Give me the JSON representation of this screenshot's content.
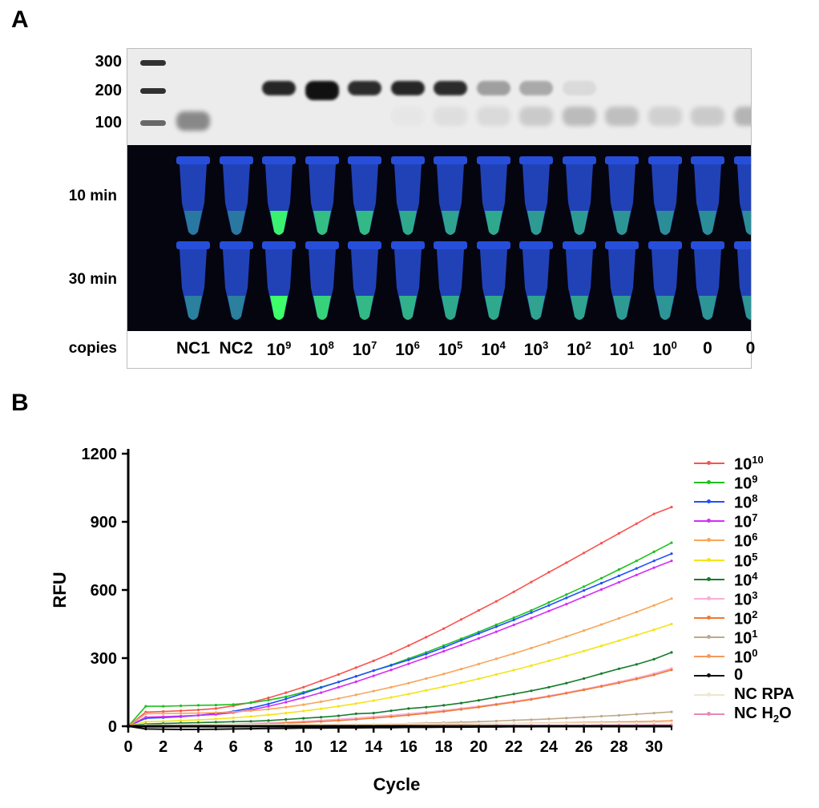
{
  "panels": {
    "a_label": "A",
    "b_label": "B"
  },
  "gel": {
    "ladder_labels": [
      "300",
      "200",
      "100"
    ],
    "row_labels": [
      "10 min",
      "30 min",
      "copies"
    ],
    "lanes": [
      {
        "base": "NC1",
        "exp": ""
      },
      {
        "base": "NC2",
        "exp": ""
      },
      {
        "base": "10",
        "exp": "9"
      },
      {
        "base": "10",
        "exp": "8"
      },
      {
        "base": "10",
        "exp": "7"
      },
      {
        "base": "10",
        "exp": "6"
      },
      {
        "base": "10",
        "exp": "5"
      },
      {
        "base": "10",
        "exp": "4"
      },
      {
        "base": "10",
        "exp": "3"
      },
      {
        "base": "10",
        "exp": "2"
      },
      {
        "base": "10",
        "exp": "1"
      },
      {
        "base": "10",
        "exp": "0"
      },
      {
        "base": "0",
        "exp": ""
      },
      {
        "base": "0",
        "exp": ""
      }
    ],
    "band_200_intensity": [
      0,
      0,
      0.9,
      1.0,
      0.88,
      0.9,
      0.88,
      0.35,
      0.3,
      0.08,
      0,
      0,
      0,
      0
    ],
    "band_100_intensity": [
      0.45,
      0,
      0,
      0,
      0,
      0.02,
      0.06,
      0.08,
      0.15,
      0.22,
      0.2,
      0.12,
      0.15,
      0.25
    ],
    "fluor_10min": [
      0.05,
      0.05,
      0.9,
      0.55,
      0.5,
      0.4,
      0.35,
      0.4,
      0.3,
      0.3,
      0.25,
      0.2,
      0.2,
      0.2
    ],
    "fluor_30min": [
      0.1,
      0.1,
      1.0,
      0.7,
      0.5,
      0.45,
      0.4,
      0.4,
      0.35,
      0.35,
      0.3,
      0.25,
      0.25,
      0.25
    ],
    "colors": {
      "band": "#111111",
      "uv_bg": "#050510",
      "tube": "#2d5cff",
      "fluor": "#3dff6a"
    }
  },
  "chart_data": {
    "type": "line",
    "title": "",
    "xlabel": "Cycle",
    "ylabel": "RFU",
    "xlim": [
      0,
      31
    ],
    "ylim": [
      0,
      1200
    ],
    "xticks": [
      "0",
      "2",
      "4",
      "6",
      "8",
      "10",
      "12",
      "14",
      "16",
      "18",
      "20",
      "22",
      "24",
      "26",
      "28",
      "30"
    ],
    "yticks": [
      "0",
      "300",
      "600",
      "900",
      "1200"
    ],
    "x": [
      0,
      1,
      2,
      3,
      4,
      5,
      6,
      7,
      8,
      9,
      10,
      11,
      12,
      13,
      14,
      15,
      16,
      17,
      18,
      19,
      20,
      21,
      22,
      23,
      24,
      25,
      26,
      27,
      28,
      29,
      30,
      31
    ],
    "series": [
      {
        "name_base": "10",
        "name_exp": "10",
        "color": "#f8534f",
        "values": [
          0,
          62,
          65,
          68,
          72,
          78,
          90,
          105,
          125,
          148,
          172,
          200,
          228,
          258,
          288,
          320,
          355,
          392,
          430,
          470,
          510,
          550,
          592,
          635,
          678,
          720,
          763,
          806,
          849,
          892,
          935,
          965
        ]
      },
      {
        "name_base": "10",
        "name_exp": "9",
        "color": "#1ec11e",
        "values": [
          0,
          88,
          88,
          90,
          92,
          93,
          96,
          103,
          115,
          130,
          150,
          172,
          195,
          220,
          245,
          270,
          298,
          325,
          355,
          385,
          415,
          447,
          478,
          510,
          545,
          580,
          615,
          652,
          690,
          728,
          768,
          808
        ]
      },
      {
        "name_base": "10",
        "name_exp": "8",
        "color": "#2050ff",
        "values": [
          0,
          35,
          38,
          42,
          48,
          56,
          66,
          80,
          98,
          120,
          145,
          170,
          195,
          220,
          245,
          268,
          292,
          318,
          347,
          378,
          408,
          438,
          468,
          500,
          532,
          565,
          598,
          630,
          662,
          695,
          728,
          760
        ]
      },
      {
        "name_base": "10",
        "name_exp": "7",
        "color": "#d42ef5",
        "values": [
          0,
          40,
          42,
          45,
          48,
          52,
          60,
          72,
          88,
          106,
          126,
          148,
          172,
          196,
          222,
          248,
          275,
          302,
          330,
          358,
          387,
          416,
          446,
          476,
          507,
          538,
          570,
          602,
          634,
          666,
          698,
          728
        ]
      },
      {
        "name_base": "10",
        "name_exp": "6",
        "color": "#f8a65a",
        "values": [
          0,
          55,
          56,
          57,
          58,
          60,
          63,
          68,
          75,
          84,
          95,
          108,
          122,
          138,
          155,
          172,
          190,
          210,
          230,
          252,
          274,
          297,
          320,
          344,
          369,
          395,
          421,
          448,
          475,
          503,
          532,
          562
        ]
      },
      {
        "name_base": "10",
        "name_exp": "5",
        "color": "#f3e418",
        "values": [
          0,
          20,
          22,
          25,
          28,
          32,
          37,
          43,
          50,
          58,
          67,
          77,
          88,
          100,
          113,
          127,
          142,
          158,
          174,
          191,
          209,
          228,
          247,
          267,
          288,
          309,
          331,
          354,
          377,
          401,
          425,
          450
        ]
      },
      {
        "name_base": "10",
        "name_exp": "4",
        "color": "#177d2c",
        "values": [
          0,
          10,
          12,
          14,
          16,
          18,
          20,
          22,
          25,
          30,
          35,
          40,
          46,
          55,
          58,
          68,
          78,
          84,
          92,
          102,
          114,
          128,
          142,
          156,
          172,
          190,
          210,
          232,
          253,
          272,
          295,
          325
        ]
      },
      {
        "name_base": "10",
        "name_exp": "3",
        "color": "#f9aed6",
        "values": [
          0,
          4,
          5,
          6,
          7,
          8,
          10,
          12,
          15,
          18,
          22,
          26,
          31,
          36,
          42,
          48,
          55,
          62,
          70,
          79,
          88,
          98,
          109,
          121,
          134,
          148,
          163,
          179,
          196,
          213,
          232,
          255
        ]
      },
      {
        "name_base": "10",
        "name_exp": "2",
        "color": "#f07830",
        "values": [
          0,
          3,
          3,
          4,
          5,
          6,
          7,
          9,
          11,
          14,
          17,
          21,
          25,
          30,
          36,
          42,
          49,
          57,
          65,
          74,
          84,
          95,
          106,
          118,
          131,
          145,
          160,
          175,
          191,
          208,
          226,
          248
        ]
      },
      {
        "name_base": "10",
        "name_exp": "1",
        "color": "#bfa98a",
        "values": [
          0,
          2,
          2,
          2,
          3,
          3,
          3,
          4,
          4,
          5,
          5,
          6,
          7,
          8,
          9,
          10,
          12,
          14,
          16,
          18,
          20,
          23,
          26,
          29,
          32,
          36,
          40,
          44,
          48,
          53,
          58,
          63
        ]
      },
      {
        "name_base": "10",
        "name_exp": "0",
        "color": "#f39a5c",
        "values": [
          0,
          3,
          3,
          3,
          3,
          4,
          4,
          4,
          5,
          5,
          5,
          6,
          6,
          7,
          7,
          8,
          8,
          9,
          10,
          10,
          11,
          12,
          13,
          14,
          15,
          16,
          17,
          18,
          19,
          20,
          22,
          24
        ]
      },
      {
        "name_base": "0",
        "name_exp": "",
        "color": "#111111",
        "values": [
          0,
          -12,
          -13,
          -14,
          -14,
          -13,
          -12,
          -11,
          -10,
          -9,
          -8,
          -8,
          -7,
          -7,
          -6,
          -6,
          -5,
          -5,
          -4,
          -4,
          -3,
          -3,
          -2,
          -2,
          -1,
          -1,
          0,
          0,
          1,
          1,
          2,
          2
        ]
      },
      {
        "name_base": "NC RPA",
        "name_exp": "",
        "color": "#ede7cf",
        "values": [
          0,
          6,
          6,
          7,
          7,
          7,
          8,
          8,
          8,
          9,
          9,
          9,
          10,
          10,
          10,
          11,
          11,
          11,
          12,
          12,
          12,
          13,
          13,
          13,
          14,
          14,
          14,
          15,
          15,
          15,
          16,
          16
        ]
      },
      {
        "name_base": "NC H",
        "name_exp": "",
        "name_sub": "2",
        "name_tail": "O",
        "color": "#e889b4",
        "values": [
          0,
          -4,
          -4,
          -3,
          -3,
          -3,
          -2,
          -2,
          -2,
          -1,
          -1,
          -1,
          0,
          0,
          0,
          1,
          1,
          1,
          2,
          2,
          2,
          3,
          3,
          3,
          4,
          4,
          4,
          5,
          5,
          5,
          6,
          6
        ]
      }
    ],
    "legend_position": "right",
    "grid": false
  }
}
